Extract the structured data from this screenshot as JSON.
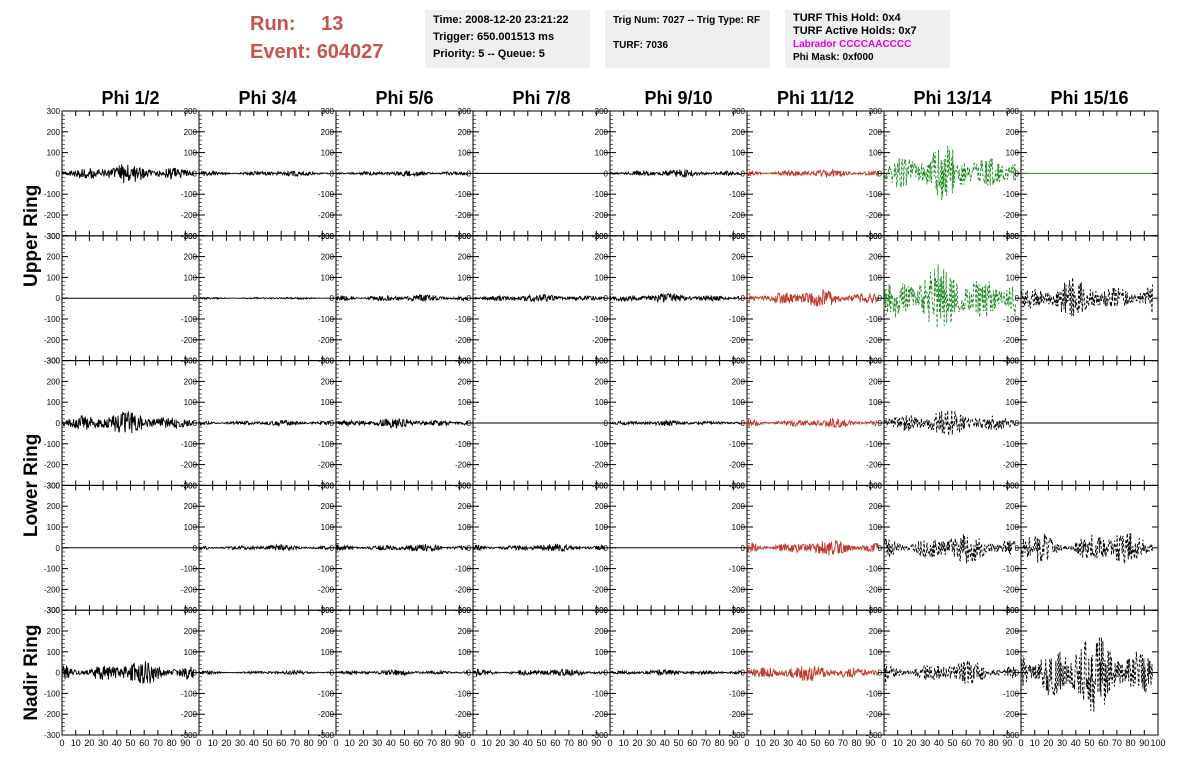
{
  "header": {
    "run_label": "Run:",
    "run_value": "13",
    "event_label": "Event:",
    "event_value": "604027"
  },
  "info_time": {
    "time": "Time: 2008-12-20 23:21:22",
    "trigger": "Trigger: 650.001513 ms",
    "priority": "Priority: 5 -- Queue: 5"
  },
  "info_trig": {
    "trig": "Trig Num: 7027 -- Trig Type: RF",
    "turf": "TURF: 7036"
  },
  "info_turf": {
    "hold": "TURF This Hold: 0x4",
    "active": "TURF Active Holds: 0x7",
    "labrador": "Labrador CCCCAACCCC",
    "phimask": "Phi Mask: 0xf000"
  },
  "colors": {
    "header_red": "#c8534d",
    "labrador_magenta": "#e000e0",
    "trace_black": "#000000",
    "trace_red": "#c0392b",
    "trace_green": "#1e8b1e"
  },
  "chart_data": {
    "type": "line",
    "columns": [
      "Phi 1/2",
      "Phi 3/4",
      "Phi 5/6",
      "Phi 7/8",
      "Phi 9/10",
      "Phi 11/12",
      "Phi 13/14",
      "Phi 15/16"
    ],
    "ring_labels": [
      "Upper Ring",
      "Lower Ring",
      "Nadir Ring"
    ],
    "xlim": [
      0,
      100
    ],
    "ylim": [
      -300,
      300
    ],
    "x_ticks": [
      0,
      10,
      20,
      30,
      40,
      50,
      60,
      70,
      80,
      90
    ],
    "y_ticks": [
      -300,
      -200,
      -100,
      0,
      100,
      200,
      300
    ],
    "rows": [
      {
        "ring": "Upper Ring",
        "traces": [
          {
            "color": "black",
            "amplitude": 50,
            "style": "solid"
          },
          {
            "color": "black",
            "amplitude": 15,
            "style": "solid"
          },
          {
            "color": "black",
            "amplitude": 15,
            "style": "solid"
          },
          {
            "color": "black",
            "amplitude": 0,
            "style": "solid"
          },
          {
            "color": "black",
            "amplitude": 20,
            "style": "solid"
          },
          {
            "color": "red",
            "amplitude": 20,
            "style": "solid"
          },
          {
            "color": "green",
            "amplitude": 140,
            "style": "dashed"
          },
          {
            "color": "green",
            "amplitude": 0,
            "style": "solid"
          }
        ]
      },
      {
        "ring": "Upper Ring",
        "traces": [
          {
            "color": "black",
            "amplitude": 0,
            "style": "solid"
          },
          {
            "color": "black",
            "amplitude": 5,
            "style": "solid"
          },
          {
            "color": "black",
            "amplitude": 20,
            "style": "solid"
          },
          {
            "color": "black",
            "amplitude": 20,
            "style": "solid"
          },
          {
            "color": "black",
            "amplitude": 25,
            "style": "solid"
          },
          {
            "color": "red",
            "amplitude": 45,
            "style": "solid"
          },
          {
            "color": "green",
            "amplitude": 170,
            "style": "dashed"
          },
          {
            "color": "black",
            "amplitude": 100,
            "style": "dashed"
          }
        ]
      },
      {
        "ring": "Lower Ring",
        "traces": [
          {
            "color": "black",
            "amplitude": 60,
            "style": "solid"
          },
          {
            "color": "black",
            "amplitude": 15,
            "style": "solid"
          },
          {
            "color": "black",
            "amplitude": 25,
            "style": "solid"
          },
          {
            "color": "black",
            "amplitude": 0,
            "style": "solid"
          },
          {
            "color": "black",
            "amplitude": 15,
            "style": "solid"
          },
          {
            "color": "red",
            "amplitude": 25,
            "style": "solid"
          },
          {
            "color": "black",
            "amplitude": 70,
            "style": "dashed"
          },
          {
            "color": "black",
            "amplitude": 0,
            "style": "solid"
          }
        ]
      },
      {
        "ring": "Lower Ring",
        "traces": [
          {
            "color": "black",
            "amplitude": 0,
            "style": "solid"
          },
          {
            "color": "black",
            "amplitude": 15,
            "style": "solid"
          },
          {
            "color": "black",
            "amplitude": 20,
            "style": "solid"
          },
          {
            "color": "black",
            "amplitude": 20,
            "style": "solid"
          },
          {
            "color": "black",
            "amplitude": 0,
            "style": "solid"
          },
          {
            "color": "red",
            "amplitude": 40,
            "style": "solid"
          },
          {
            "color": "black",
            "amplitude": 80,
            "style": "dashed"
          },
          {
            "color": "black",
            "amplitude": 90,
            "style": "dashed"
          }
        ]
      },
      {
        "ring": "Nadir Ring",
        "traces": [
          {
            "color": "black",
            "amplitude": 60,
            "style": "solid"
          },
          {
            "color": "black",
            "amplitude": 10,
            "style": "solid"
          },
          {
            "color": "black",
            "amplitude": 15,
            "style": "solid"
          },
          {
            "color": "black",
            "amplitude": 20,
            "style": "solid"
          },
          {
            "color": "black",
            "amplitude": 15,
            "style": "solid"
          },
          {
            "color": "red",
            "amplitude": 45,
            "style": "solid"
          },
          {
            "color": "black",
            "amplitude": 60,
            "style": "dashed"
          },
          {
            "color": "black",
            "amplitude": 200,
            "style": "dashed"
          }
        ]
      }
    ]
  }
}
